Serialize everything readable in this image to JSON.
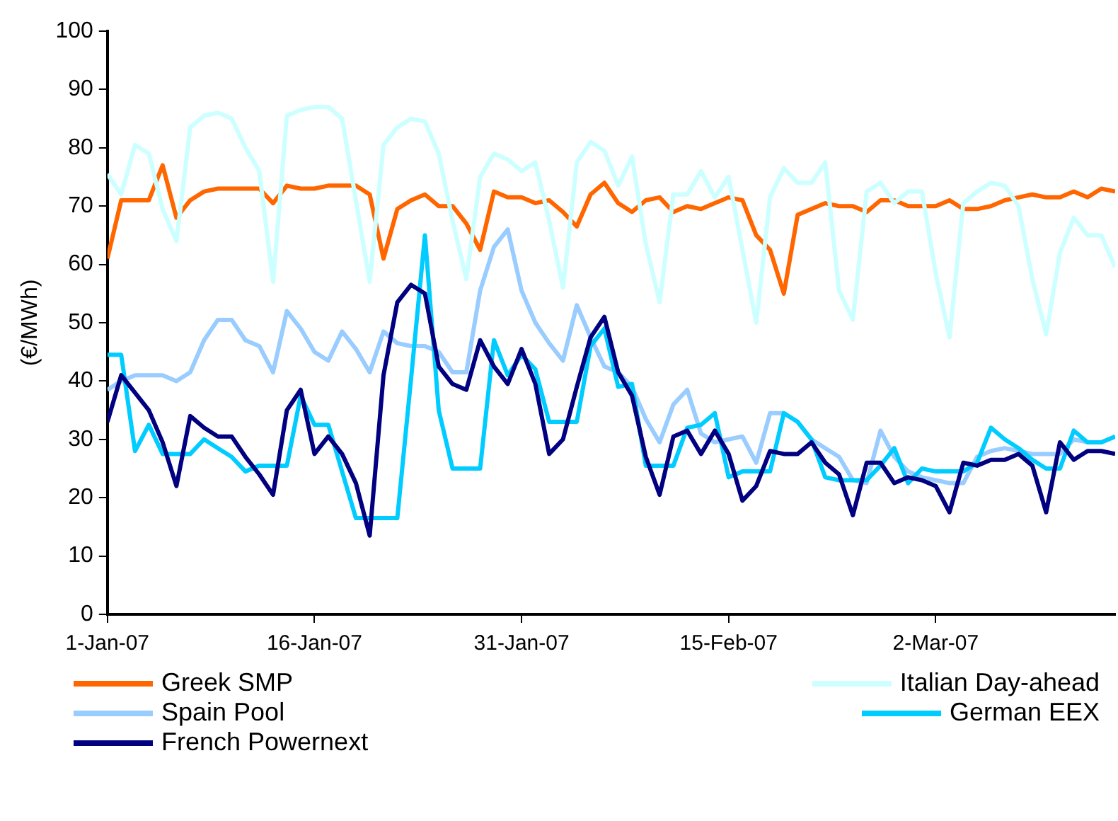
{
  "chart_data": {
    "type": "line",
    "ylabel": "(€/MWh)",
    "x": [
      "2007-01-01",
      "2007-01-02",
      "2007-01-03",
      "2007-01-04",
      "2007-01-05",
      "2007-01-06",
      "2007-01-07",
      "2007-01-08",
      "2007-01-09",
      "2007-01-10",
      "2007-01-11",
      "2007-01-12",
      "2007-01-13",
      "2007-01-14",
      "2007-01-15",
      "2007-01-16",
      "2007-01-17",
      "2007-01-18",
      "2007-01-19",
      "2007-01-20",
      "2007-01-21",
      "2007-01-22",
      "2007-01-23",
      "2007-01-24",
      "2007-01-25",
      "2007-01-26",
      "2007-01-27",
      "2007-01-28",
      "2007-01-29",
      "2007-01-30",
      "2007-01-31",
      "2007-02-01",
      "2007-02-02",
      "2007-02-03",
      "2007-02-04",
      "2007-02-05",
      "2007-02-06",
      "2007-02-07",
      "2007-02-08",
      "2007-02-09",
      "2007-02-10",
      "2007-02-11",
      "2007-02-12",
      "2007-02-13",
      "2007-02-14",
      "2007-02-15",
      "2007-02-16",
      "2007-02-17",
      "2007-02-18",
      "2007-02-19",
      "2007-02-20",
      "2007-02-21",
      "2007-02-22",
      "2007-02-23",
      "2007-02-24",
      "2007-02-25",
      "2007-02-26",
      "2007-02-27",
      "2007-02-28",
      "2007-03-01",
      "2007-03-02",
      "2007-03-03",
      "2007-03-04",
      "2007-03-05",
      "2007-03-06",
      "2007-03-07",
      "2007-03-08",
      "2007-03-09",
      "2007-03-10",
      "2007-03-11",
      "2007-03-12",
      "2007-03-13",
      "2007-03-14",
      "2007-03-15"
    ],
    "series": [
      {
        "name": "Greek SMP",
        "color": "#ff6600",
        "values": [
          61,
          71,
          71,
          71,
          77,
          68,
          71,
          72.5,
          73,
          73,
          73,
          73,
          70.5,
          73.5,
          73,
          73,
          73.5,
          73.5,
          73.5,
          72,
          61,
          69.5,
          71,
          72,
          70,
          70,
          67,
          62.5,
          72.5,
          71.5,
          71.5,
          70.5,
          71,
          69,
          66.5,
          72,
          74,
          70.5,
          69,
          71,
          71.5,
          69,
          70,
          69.5,
          70.5,
          71.5,
          71,
          65,
          62.5,
          55,
          68.5,
          69.5,
          70.5,
          70,
          70,
          69,
          71,
          71,
          70,
          70,
          70,
          71,
          69.5,
          69.5,
          70,
          71,
          71.5,
          72,
          71.5,
          71.5,
          72.5,
          71.5,
          73,
          72.5
        ]
      },
      {
        "name": "Italian Day-ahead",
        "color": "#ccffff",
        "values": [
          75.5,
          72,
          80.5,
          79,
          69.5,
          64,
          83.5,
          85.5,
          86,
          85,
          80,
          76,
          57,
          85.5,
          86.5,
          87,
          87,
          85,
          71,
          57,
          80.5,
          83.5,
          85,
          84.5,
          79,
          67.5,
          57.5,
          75,
          79,
          78,
          76,
          77.5,
          67.5,
          56,
          77.5,
          81,
          79.5,
          73.5,
          78.5,
          63.5,
          53.5,
          72,
          72,
          76,
          71.5,
          75,
          62.5,
          50,
          71.5,
          76.5,
          74,
          74,
          77.5,
          55.5,
          50.5,
          72.5,
          74,
          70.5,
          72.5,
          72.5,
          58.5,
          47.5,
          70.5,
          72.5,
          74,
          73.5,
          70,
          57.5,
          48,
          62,
          68,
          65,
          65,
          59.5
        ]
      },
      {
        "name": "Spain Pool",
        "color": "#99ccff",
        "values": [
          38.5,
          40,
          41,
          41,
          41,
          40,
          41.5,
          47,
          50.5,
          50.5,
          47,
          46,
          41.5,
          52,
          49,
          45,
          43.5,
          48.5,
          45.5,
          41.5,
          48.5,
          46.5,
          46,
          46,
          45,
          41.5,
          41.5,
          55.5,
          63,
          66,
          55.5,
          50,
          46.5,
          43.5,
          53,
          47.5,
          42.5,
          41.5,
          39,
          33.5,
          29.5,
          36,
          38.5,
          31,
          29.5,
          30,
          30.5,
          26,
          34.5,
          34.5,
          33,
          30,
          28.5,
          27,
          23,
          22.5,
          31.5,
          27,
          24.5,
          23.5,
          23,
          22.5,
          22.5,
          27,
          28,
          28.5,
          28,
          27.5,
          27.5,
          27.5,
          30,
          29.5,
          29.5,
          30.5
        ]
      },
      {
        "name": "German EEX",
        "color": "#00ccff",
        "values": [
          44.5,
          44.5,
          28,
          32.5,
          27.5,
          27.5,
          27.5,
          30,
          28.5,
          27,
          24.5,
          25.5,
          25.5,
          25.5,
          37.5,
          32.5,
          32.5,
          24.5,
          16.5,
          16.5,
          16.5,
          16.5,
          40.5,
          65,
          35,
          25,
          25,
          25,
          47,
          41,
          44.5,
          42,
          33,
          33,
          33,
          46,
          49,
          39,
          39.5,
          25.5,
          25.5,
          25.5,
          32,
          32.5,
          34.5,
          23.5,
          24.5,
          24.5,
          24.5,
          34.5,
          33,
          30,
          23.5,
          23,
          23,
          23,
          25.5,
          28.5,
          22.5,
          25,
          24.5,
          24.5,
          24.5,
          26,
          32,
          30,
          28.5,
          26.5,
          25,
          25,
          31.5,
          29.5,
          29.5,
          30.5
        ]
      },
      {
        "name": "French Powernext",
        "color": "#000080",
        "values": [
          33,
          41,
          38,
          35,
          29.5,
          22,
          34,
          32,
          30.5,
          30.5,
          27,
          24,
          20.5,
          35,
          38.5,
          27.5,
          30.5,
          27.5,
          22.5,
          13.5,
          41,
          53.5,
          56.5,
          55,
          42.5,
          39.5,
          38.5,
          47,
          42.5,
          39.5,
          45.5,
          39.5,
          27.5,
          30,
          39,
          47.5,
          51,
          41.5,
          37.5,
          27,
          20.5,
          30.5,
          31.5,
          27.5,
          31.5,
          27.5,
          19.5,
          22,
          28,
          27.5,
          27.5,
          29.5,
          26,
          24,
          17,
          26,
          26,
          22.5,
          23.5,
          23,
          22,
          17.5,
          26,
          25.5,
          26.5,
          26.5,
          27.5,
          25.5,
          17.5,
          29.5,
          26.5,
          28,
          28,
          27.5
        ]
      }
    ],
    "xlim": [
      "2007-01-01",
      "2007-03-15"
    ],
    "xticks": [
      {
        "value": "2007-01-01",
        "label": "1-Jan-07"
      },
      {
        "value": "2007-01-16",
        "label": "16-Jan-07"
      },
      {
        "value": "2007-01-31",
        "label": "31-Jan-07"
      },
      {
        "value": "2007-02-15",
        "label": "15-Feb-07"
      },
      {
        "value": "2007-03-02",
        "label": "2-Mar-07"
      }
    ],
    "ylim": [
      0,
      100
    ],
    "yticks": [
      0,
      10,
      20,
      30,
      40,
      50,
      60,
      70,
      80,
      90,
      100
    ],
    "grid": false,
    "legend": "bottom",
    "marker": "none",
    "line_style": "solid"
  }
}
